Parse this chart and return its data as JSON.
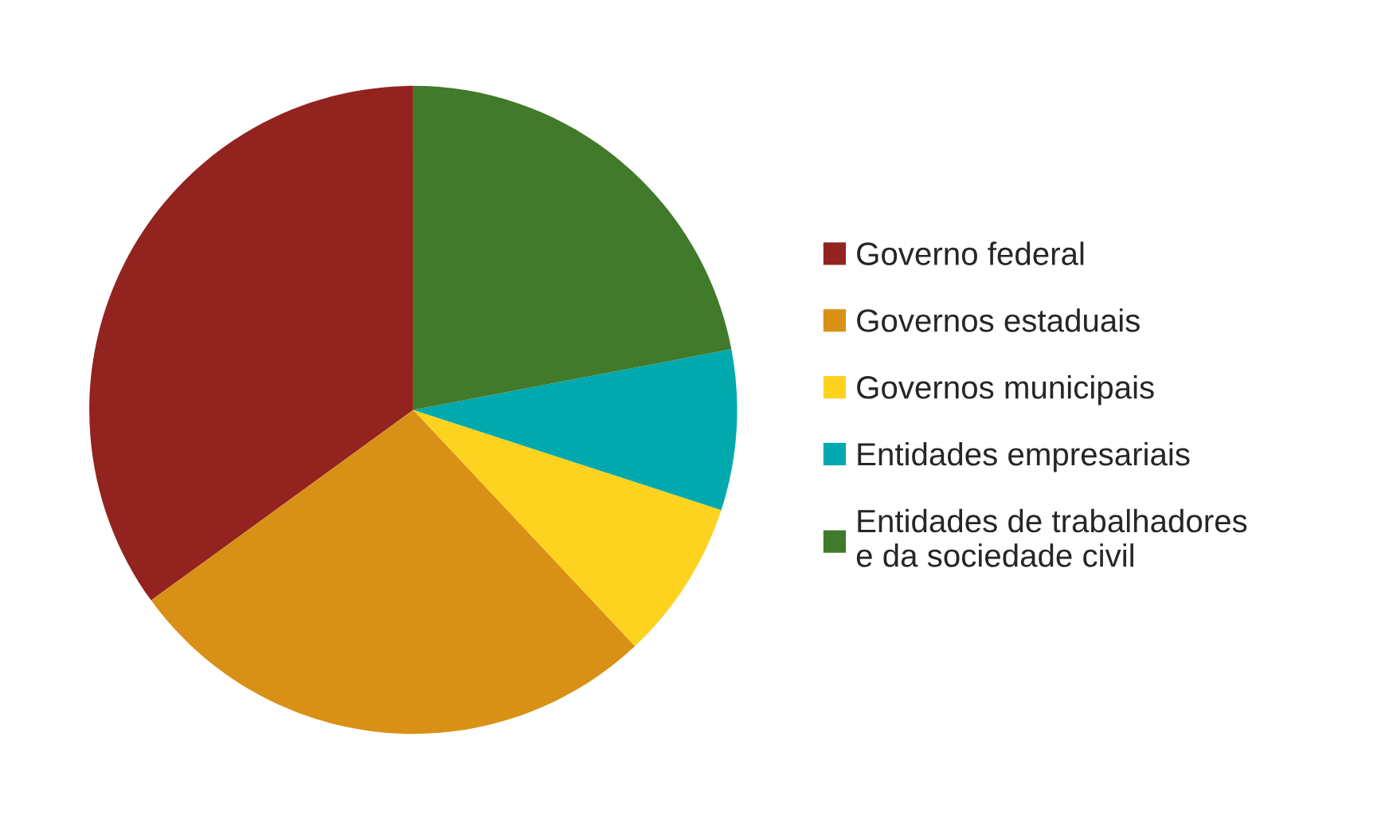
{
  "chart_data": {
    "type": "pie",
    "categories": [
      "Governo federal",
      "Governos estaduais",
      "Governos municipais",
      "Entidades empresariais",
      "Entidades de trabalhadores\ne da sociedade civil"
    ],
    "values": [
      35,
      27,
      8,
      8,
      22
    ],
    "colors": [
      "#92231f",
      "#d89116",
      "#fed320",
      "#00a9ad",
      "#417a2a"
    ],
    "legend": "right"
  }
}
